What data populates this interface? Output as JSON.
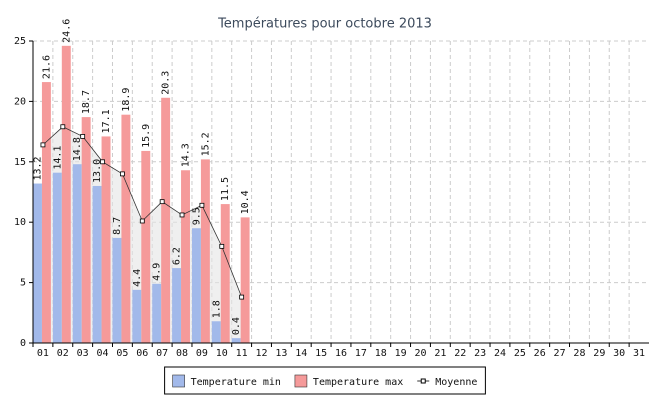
{
  "chart_data": {
    "type": "bar",
    "title": "Températures pour octobre 2013",
    "categories": [
      "01",
      "02",
      "03",
      "04",
      "05",
      "06",
      "07",
      "08",
      "09",
      "10",
      "11",
      "12",
      "13",
      "14",
      "15",
      "16",
      "17",
      "18",
      "19",
      "20",
      "21",
      "22",
      "23",
      "24",
      "25",
      "26",
      "27",
      "28",
      "29",
      "30",
      "31"
    ],
    "series": [
      {
        "name": "Temperature min",
        "color": "#a2b9ea",
        "values": [
          13.2,
          14.1,
          14.8,
          13.0,
          8.7,
          4.4,
          4.9,
          6.2,
          9.5,
          1.8,
          0.4,
          null,
          null,
          null,
          null,
          null,
          null,
          null,
          null,
          null,
          null,
          null,
          null,
          null,
          null,
          null,
          null,
          null,
          null,
          null,
          null
        ],
        "value_labels": [
          "13.2",
          "14.1",
          "14.8",
          "13.0",
          "8.7",
          "4.4",
          "4.9",
          "6.2",
          "9.5",
          "1.8",
          "0.4",
          null,
          null,
          null,
          null,
          null,
          null,
          null,
          null,
          null,
          null,
          null,
          null,
          null,
          null,
          null,
          null,
          null,
          null,
          null,
          null
        ]
      },
      {
        "name": "Temperature max",
        "color": "#f59a9a",
        "values": [
          21.6,
          24.6,
          18.7,
          17.1,
          18.9,
          15.9,
          20.3,
          14.3,
          15.2,
          11.5,
          10.4,
          null,
          null,
          null,
          null,
          null,
          null,
          null,
          null,
          null,
          null,
          null,
          null,
          null,
          null,
          null,
          null,
          null,
          null,
          null,
          null
        ],
        "value_labels": [
          "21.6",
          "24.6",
          "18.7",
          "17.1",
          "18.9",
          "15.9",
          "20.3",
          "14.3",
          "15.2",
          "11.5",
          "10.4",
          null,
          null,
          null,
          null,
          null,
          null,
          null,
          null,
          null,
          null,
          null,
          null,
          null,
          null,
          null,
          null,
          null,
          null,
          null,
          null
        ]
      },
      {
        "name": "Moyenne",
        "color": "#333333",
        "type": "line",
        "values": [
          16.4,
          17.9,
          17.1,
          15.0,
          14.0,
          10.1,
          11.7,
          10.6,
          11.4,
          8.0,
          3.8,
          null,
          null,
          null,
          null,
          null,
          null,
          null,
          null,
          null,
          null,
          null,
          null,
          null,
          null,
          null,
          null,
          null,
          null,
          null,
          null
        ]
      }
    ],
    "ylim": [
      0,
      25
    ],
    "yticks": [
      0,
      5,
      10,
      15,
      20,
      25
    ],
    "grid": true,
    "legend": "bottom"
  }
}
